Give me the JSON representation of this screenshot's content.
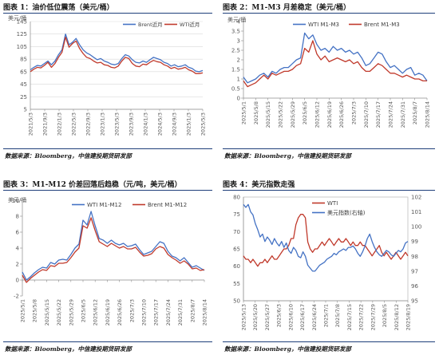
{
  "captions": {
    "c1": "图表 1：油价低位震荡（美元/桶）",
    "c2": "图表 2：M1-M3 月差稳定（美元/桶）",
    "c3": "图表 3：M1-M12 价差回落后趋稳（元/吨，美元/桶）",
    "c4": "图表 4：美元指数走强"
  },
  "sources": {
    "s1": "数据来源：Bloomberg，中信建投期货研发部",
    "s2": "数据来源：Bloomberg，中信建投期货研发部",
    "s3": "数据来源：Bloomberg，中信建投期货研发部",
    "s4": "数据来源：Bloomberg，中信建投期货研发部"
  },
  "colors": {
    "blue": "#4472c4",
    "red": "#c0392b",
    "rule": "#1f3f7a",
    "grid": "#d9d9d9"
  },
  "chart_data": [
    {
      "type": "line",
      "unit_label": "美元/桶",
      "ylim": [
        5,
        145
      ],
      "yticks": [
        5,
        25,
        45,
        65,
        85,
        105,
        125,
        145
      ],
      "xtick_labels": [
        "2021/5/3",
        "2021/9/3",
        "2022/1/3",
        "2022/5/3",
        "2022/9/3",
        "2023/1/3",
        "2023/5/3",
        "2023/9/3",
        "2024/1/3",
        "2024/5/3",
        "2024/9/3",
        "2025/1/3",
        "2025/5/3"
      ],
      "legend_position": "top-right",
      "series": [
        {
          "name": "Brent近月",
          "color": "#4472c4",
          "x": [
            0,
            1,
            2,
            3,
            4,
            5,
            6,
            7,
            8,
            9,
            10,
            11,
            12,
            13,
            14,
            15,
            16,
            17,
            18,
            19,
            20,
            21,
            22,
            23,
            24,
            25,
            26,
            27,
            28,
            29,
            30,
            31,
            32,
            33,
            34,
            35,
            36,
            37,
            38,
            39,
            40,
            41,
            42,
            43,
            44,
            45,
            46,
            47,
            48,
            49
          ],
          "values": [
            68,
            72,
            75,
            74,
            78,
            82,
            76,
            82,
            92,
            100,
            125,
            108,
            112,
            118,
            108,
            100,
            95,
            92,
            88,
            84,
            86,
            82,
            80,
            77,
            76,
            78,
            86,
            92,
            90,
            84,
            80,
            79,
            82,
            80,
            84,
            88,
            86,
            84,
            80,
            78,
            74,
            76,
            73,
            74,
            76,
            72,
            70,
            66,
            65,
            67
          ]
        },
        {
          "name": "WTI近月",
          "color": "#c0392b",
          "x": [
            0,
            1,
            2,
            3,
            4,
            5,
            6,
            7,
            8,
            9,
            10,
            11,
            12,
            13,
            14,
            15,
            16,
            17,
            18,
            19,
            20,
            21,
            22,
            23,
            24,
            25,
            26,
            27,
            28,
            29,
            30,
            31,
            32,
            33,
            34,
            35,
            36,
            37,
            38,
            39,
            40,
            41,
            42,
            43,
            44,
            45,
            46,
            47,
            48,
            49
          ],
          "values": [
            65,
            69,
            72,
            71,
            75,
            80,
            72,
            78,
            88,
            96,
            120,
            104,
            110,
            114,
            102,
            94,
            88,
            86,
            82,
            79,
            80,
            76,
            75,
            72,
            71,
            74,
            82,
            88,
            86,
            78,
            74,
            73,
            77,
            76,
            80,
            83,
            81,
            80,
            76,
            74,
            70,
            72,
            69,
            70,
            72,
            68,
            66,
            62,
            62,
            63
          ]
        }
      ]
    },
    {
      "type": "line",
      "unit_label": "美元/桶",
      "ylim": [
        0,
        4
      ],
      "yticks": [
        0,
        0.5,
        1,
        1.5,
        2,
        2.5,
        3,
        3.5,
        4
      ],
      "xtick_labels": [
        "2025/5/1",
        "2025/5/8",
        "2025/5/15",
        "2025/5/22",
        "2025/5/29",
        "2025/6/5",
        "2025/6/12",
        "2025/6/19",
        "2025/6/26",
        "2025/7/3",
        "2025/7/10",
        "2025/7/17",
        "2025/7/24",
        "2025/7/31",
        "2025/8/7",
        "2025/8/14"
      ],
      "legend_position": "top",
      "series": [
        {
          "name": "WTI M1-M3",
          "color": "#4472c4",
          "x": [
            0,
            1,
            2,
            3,
            4,
            5,
            6,
            7,
            8,
            9,
            10,
            11,
            12,
            13,
            14,
            15,
            16,
            17,
            18,
            19,
            20,
            21,
            22,
            23,
            24,
            25,
            26,
            27,
            28,
            29,
            30,
            31,
            32,
            33,
            34,
            35,
            36,
            37,
            38,
            39,
            40,
            41,
            42,
            43,
            44,
            45
          ],
          "values": [
            1.1,
            0.8,
            0.9,
            1.0,
            1.2,
            1.3,
            1.1,
            1.4,
            1.3,
            1.5,
            1.6,
            1.6,
            1.8,
            2.0,
            2.1,
            3.4,
            3.1,
            3.3,
            2.8,
            2.5,
            2.6,
            2.4,
            2.7,
            2.5,
            2.6,
            2.4,
            2.5,
            2.3,
            2.4,
            2.1,
            1.7,
            1.8,
            2.1,
            2.4,
            2.3,
            1.9,
            1.6,
            1.7,
            1.5,
            1.3,
            1.5,
            1.6,
            1.2,
            1.3,
            1.2,
            0.9
          ]
        },
        {
          "name": "Brent M1-M3",
          "color": "#c0392b",
          "x": [
            0,
            1,
            2,
            3,
            4,
            5,
            6,
            7,
            8,
            9,
            10,
            11,
            12,
            13,
            14,
            15,
            16,
            17,
            18,
            19,
            20,
            21,
            22,
            23,
            24,
            25,
            26,
            27,
            28,
            29,
            30,
            31,
            32,
            33,
            34,
            35,
            36,
            37,
            38,
            39,
            40,
            41,
            42,
            43,
            44,
            45
          ],
          "values": [
            0.9,
            0.6,
            0.7,
            0.8,
            1.0,
            1.2,
            1.0,
            1.3,
            1.2,
            1.3,
            1.4,
            1.4,
            1.5,
            1.7,
            1.8,
            2.6,
            2.4,
            3.0,
            2.3,
            2.0,
            2.2,
            1.9,
            2.0,
            2.1,
            2.0,
            1.9,
            2.0,
            1.8,
            1.9,
            1.6,
            1.4,
            1.4,
            1.6,
            1.8,
            1.7,
            1.5,
            1.3,
            1.3,
            1.2,
            1.1,
            1.2,
            1.1,
            1.0,
            1.0,
            0.9,
            0.9
          ]
        }
      ]
    },
    {
      "type": "line",
      "unit_label": "美元/桶",
      "ylim": [
        -2,
        10
      ],
      "yticks": [
        -2,
        0,
        2,
        4,
        6,
        8,
        10
      ],
      "xtick_labels": [
        "2025/5/1",
        "2025/5/8",
        "2025/5/15",
        "2025/5/22",
        "2025/5/29",
        "2025/6/5",
        "2025/6/12",
        "2025/6/19",
        "2025/6/26",
        "2025/7/3",
        "2025/7/10",
        "2025/7/17",
        "2025/7/24",
        "2025/7/31",
        "2025/8/7",
        "2025/8/14"
      ],
      "legend_position": "top",
      "series": [
        {
          "name": "WTI M1-M12",
          "color": "#4472c4",
          "x": [
            0,
            1,
            2,
            3,
            4,
            5,
            6,
            7,
            8,
            9,
            10,
            11,
            12,
            13,
            14,
            15,
            16,
            17,
            18,
            19,
            20,
            21,
            22,
            23,
            24,
            25,
            26,
            27,
            28,
            29,
            30,
            31,
            32,
            33,
            34,
            35,
            36,
            37,
            38,
            39,
            40,
            41,
            42,
            43,
            44,
            45
          ],
          "values": [
            1.0,
            0.0,
            0.4,
            0.9,
            1.3,
            1.6,
            1.5,
            2.2,
            2.0,
            2.5,
            2.6,
            2.5,
            3.2,
            4.0,
            4.5,
            7.5,
            6.9,
            8.6,
            6.8,
            5.2,
            5.0,
            4.6,
            5.0,
            4.6,
            4.4,
            4.6,
            4.2,
            4.3,
            4.5,
            3.8,
            3.2,
            3.4,
            3.6,
            4.2,
            4.8,
            4.6,
            3.6,
            3.0,
            2.8,
            2.4,
            2.8,
            2.2,
            1.6,
            1.8,
            1.5,
            1.2
          ]
        },
        {
          "name": "Brent M1-M12",
          "color": "#c0392b",
          "x": [
            0,
            1,
            2,
            3,
            4,
            5,
            6,
            7,
            8,
            9,
            10,
            11,
            12,
            13,
            14,
            15,
            16,
            17,
            18,
            19,
            20,
            21,
            22,
            23,
            24,
            25,
            26,
            27,
            28,
            29,
            30,
            31,
            32,
            33,
            34,
            35,
            36,
            37,
            38,
            39,
            40,
            41,
            42,
            43,
            44,
            45
          ],
          "values": [
            0.6,
            -0.3,
            0.2,
            0.6,
            1.0,
            1.3,
            1.2,
            1.8,
            1.7,
            2.1,
            2.1,
            2.2,
            2.8,
            3.5,
            4.0,
            6.8,
            6.5,
            7.8,
            6.2,
            4.8,
            4.5,
            4.2,
            4.6,
            4.3,
            4.0,
            4.2,
            3.9,
            3.9,
            4.1,
            3.5,
            3.0,
            3.1,
            3.3,
            3.9,
            4.2,
            4.0,
            3.2,
            2.8,
            2.5,
            2.1,
            2.4,
            2.0,
            1.4,
            1.5,
            1.2,
            1.3
          ]
        }
      ]
    },
    {
      "type": "line",
      "ylim": [
        50,
        80
      ],
      "yticks": [
        50,
        55,
        60,
        65,
        70,
        75,
        80
      ],
      "y2lim": [
        95,
        102
      ],
      "y2ticks": [
        95,
        96,
        97,
        98,
        99,
        100,
        101,
        102
      ],
      "xtick_labels": [
        "2025/5/13",
        "2025/5/20",
        "2025/5/27",
        "2025/6/3",
        "2025/6/10",
        "2025/6/17",
        "2025/6/24",
        "2025/7/1",
        "2025/7/8",
        "2025/7/15",
        "2025/7/22",
        "2025/7/29",
        "2025/8/5",
        "2025/8/12",
        "2025/8/19"
      ],
      "legend_position": "top-right",
      "series": [
        {
          "name": "WTI",
          "color": "#c0392b",
          "axis": "left",
          "x": [
            0,
            1,
            2,
            3,
            4,
            5,
            6,
            7,
            8,
            9,
            10,
            11,
            12,
            13,
            14,
            15,
            16,
            17,
            18,
            19,
            20,
            21,
            22,
            23,
            24,
            25,
            26,
            27,
            28,
            29,
            30,
            31,
            32,
            33,
            34,
            35,
            36,
            37,
            38,
            39,
            40,
            41,
            42,
            43,
            44,
            45,
            46,
            47,
            48,
            49,
            50,
            51,
            52,
            53,
            54,
            55,
            56,
            57,
            58,
            59,
            60,
            61,
            62,
            63,
            64,
            65,
            66,
            67,
            68,
            69
          ],
          "values": [
            63,
            62,
            62,
            61,
            62,
            61,
            60,
            61,
            61,
            62,
            61,
            62,
            63,
            62,
            62,
            63,
            64,
            65,
            65,
            66,
            68,
            68,
            72,
            74,
            75,
            75,
            74,
            67,
            65,
            64,
            65,
            65,
            66,
            67,
            66,
            67,
            68,
            67,
            66,
            67,
            68,
            67,
            67,
            68,
            67,
            66,
            67,
            66,
            66,
            67,
            66,
            66,
            65,
            64,
            63,
            64,
            65,
            66,
            64,
            63,
            64,
            63,
            62,
            63,
            64,
            63,
            62,
            63,
            64,
            63
          ]
        },
        {
          "name": "美元指数(右轴)",
          "color": "#4472c4",
          "axis": "right",
          "x": [
            0,
            1,
            2,
            3,
            4,
            5,
            6,
            7,
            8,
            9,
            10,
            11,
            12,
            13,
            14,
            15,
            16,
            17,
            18,
            19,
            20,
            21,
            22,
            23,
            24,
            25,
            26,
            27,
            28,
            29,
            30,
            31,
            32,
            33,
            34,
            35,
            36,
            37,
            38,
            39,
            40,
            41,
            42,
            43,
            44,
            45,
            46,
            47,
            48,
            49,
            50,
            51,
            52,
            53,
            54,
            55,
            56,
            57,
            58,
            59,
            60,
            61,
            62,
            63,
            64,
            65,
            66,
            67,
            68,
            69
          ],
          "values": [
            101.5,
            101.3,
            101.5,
            101.0,
            100.8,
            100.2,
            99.8,
            99.3,
            99.5,
            99.0,
            99.3,
            99.1,
            98.8,
            99.2,
            98.9,
            98.7,
            99.0,
            98.6,
            98.9,
            98.4,
            98.2,
            98.6,
            98.4,
            98.0,
            97.9,
            98.3,
            98.0,
            97.4,
            97.2,
            97.0,
            97.0,
            97.2,
            97.4,
            97.5,
            97.6,
            97.8,
            97.9,
            98.0,
            98.2,
            98.1,
            98.3,
            98.4,
            98.5,
            98.4,
            98.6,
            98.6,
            98.7,
            98.5,
            98.2,
            98.0,
            98.3,
            98.7,
            99.2,
            99.5,
            99.0,
            98.6,
            98.3,
            98.1,
            98.0,
            98.2,
            98.4,
            98.3,
            98.1,
            98.0,
            98.2,
            98.4,
            98.3,
            98.5,
            98.9,
            99.0
          ]
        }
      ]
    }
  ]
}
